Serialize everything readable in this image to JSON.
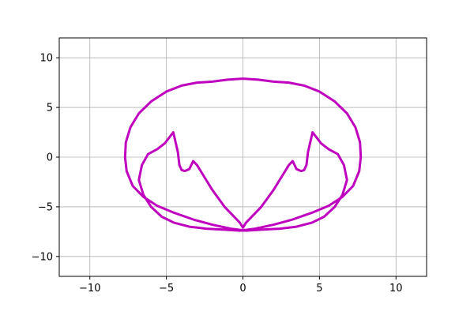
{
  "chart_data": {
    "type": "line",
    "title": "",
    "xlabel": "",
    "ylabel": "",
    "xlim": [
      -12,
      12
    ],
    "ylim": [
      -12,
      12
    ],
    "x_ticks": [
      -10,
      -5,
      0,
      5,
      10
    ],
    "y_ticks": [
      -10,
      -5,
      0,
      5,
      10
    ],
    "x_tick_labels": [
      "−10",
      "−5",
      "0",
      "5",
      "10"
    ],
    "y_tick_labels": [
      "−10",
      "−5",
      "0",
      "5",
      "10"
    ],
    "grid": true,
    "legend": null,
    "series": [
      {
        "color": "#bf00bf",
        "x": [
          -7.7,
          -7.65,
          -7.35,
          -6.8,
          -6.0,
          -5.0,
          -4.0,
          -3.0,
          -2.0,
          -1.0,
          0.0,
          1.0,
          2.0,
          3.0,
          4.0,
          5.0,
          6.0,
          6.8,
          7.35,
          7.65,
          7.7,
          7.6,
          7.2,
          6.5,
          5.6,
          4.5,
          3.2,
          2.0,
          0.8,
          -0.2,
          -1.2,
          -2.4,
          -3.5,
          -4.5,
          -5.3,
          -6.0,
          -6.5,
          -6.8,
          -6.6,
          -6.2,
          -5.6,
          -5.1,
          -4.55,
          -4.25,
          -4.15,
          -4.0,
          -3.8,
          -3.5,
          -3.25,
          -3.0,
          -2.6,
          -2.0,
          -1.2,
          -0.2,
          0.0,
          0.2,
          1.2,
          2.0,
          2.6,
          3.0,
          3.25,
          3.5,
          3.8,
          4.0,
          4.15,
          4.25,
          4.55,
          5.1,
          5.6,
          6.2,
          6.6,
          6.8,
          6.5,
          6.0,
          5.3,
          4.5,
          3.5,
          2.4,
          1.2,
          0.2,
          -0.8,
          -2.0,
          -3.2,
          -4.5,
          -5.6,
          -6.5,
          -7.2,
          -7.6,
          -7.7
        ],
        "y": [
          0.0,
          1.5,
          3.0,
          4.4,
          5.6,
          6.6,
          7.2,
          7.5,
          7.6,
          7.8,
          7.9,
          7.8,
          7.6,
          7.5,
          7.2,
          6.6,
          5.6,
          4.4,
          3.0,
          1.5,
          0.0,
          -1.4,
          -2.9,
          -4.0,
          -4.9,
          -5.6,
          -6.3,
          -6.8,
          -7.2,
          -7.4,
          -7.3,
          -7.2,
          -7.0,
          -6.6,
          -6.0,
          -5.0,
          -3.8,
          -2.3,
          -0.8,
          0.3,
          0.8,
          1.4,
          2.5,
          0.5,
          -0.8,
          -1.3,
          -1.4,
          -1.2,
          -0.4,
          -0.8,
          -1.8,
          -3.3,
          -5.0,
          -6.6,
          -7.1,
          -6.6,
          -5.0,
          -3.3,
          -1.8,
          -0.8,
          -0.4,
          -1.2,
          -1.4,
          -1.3,
          -0.8,
          0.5,
          2.5,
          1.4,
          0.8,
          0.3,
          -0.8,
          -2.3,
          -3.8,
          -5.0,
          -6.0,
          -6.6,
          -7.0,
          -7.2,
          -7.3,
          -7.4,
          -7.2,
          -6.8,
          -6.3,
          -5.6,
          -4.9,
          -4.0,
          -2.9,
          -1.4,
          0.0
        ]
      }
    ]
  }
}
